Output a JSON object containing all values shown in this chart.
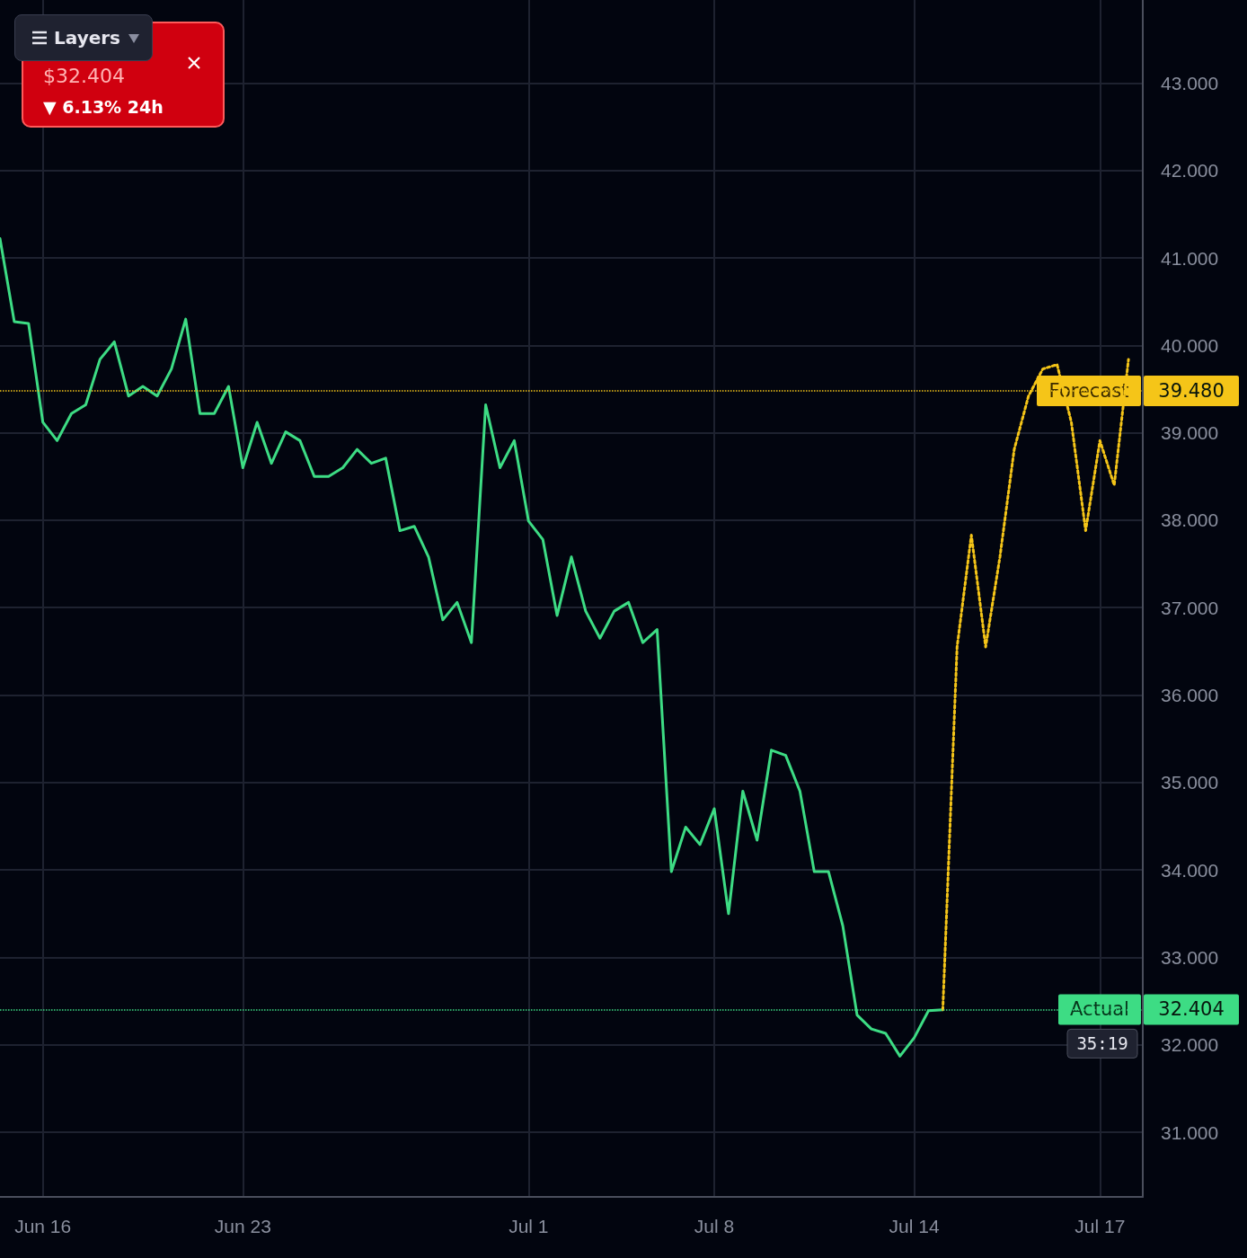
{
  "chart_data": {
    "type": "line",
    "categories": [
      null,
      null,
      null,
      "Jun 16",
      null,
      null,
      null,
      null,
      null,
      null,
      null,
      null,
      null,
      null,
      null,
      null,
      null,
      "Jun 23",
      null,
      null,
      null,
      null,
      null,
      null,
      null,
      null,
      null,
      null,
      null,
      null,
      null,
      null,
      null,
      null,
      null,
      null,
      null,
      "Jul 1",
      null,
      null,
      null,
      null,
      null,
      null,
      null,
      null,
      null,
      null,
      null,
      null,
      "Jul 8",
      null,
      null,
      null,
      null,
      null,
      null,
      null,
      null,
      null,
      null,
      null,
      null,
      null,
      "Jul 14",
      null,
      null,
      null,
      null,
      null,
      null,
      null,
      null,
      null,
      null,
      null,
      null,
      "Jul 17",
      null,
      null,
      null
    ],
    "series": [
      {
        "color": "#3ddc84",
        "line_style": "solid",
        "values": [
          41.22,
          40.27,
          40.25,
          39.12,
          38.91,
          39.22,
          39.32,
          39.84,
          40.04,
          39.42,
          39.53,
          39.42,
          39.73,
          40.3,
          39.22,
          39.22,
          39.53,
          38.6,
          39.12,
          38.65,
          39.01,
          38.91,
          38.5,
          38.5,
          38.6,
          38.81,
          38.65,
          38.71,
          37.88,
          37.93,
          37.58,
          36.86,
          37.06,
          36.6,
          39.32,
          38.6,
          38.91,
          37.99,
          37.78,
          36.91,
          37.58,
          36.96,
          36.65,
          36.96,
          37.06,
          36.6,
          36.75,
          33.98,
          34.49,
          34.29,
          34.7,
          33.5,
          34.9,
          34.34,
          35.37,
          35.31,
          34.9,
          33.98,
          33.98,
          33.36,
          32.34,
          32.18,
          32.13,
          31.87,
          32.08,
          32.39,
          32.4,
          null,
          null,
          null,
          null,
          null,
          null,
          null,
          null,
          null,
          null,
          null,
          null,
          null,
          null
        ]
      },
      {
        "color": "#f5c518",
        "line_style": "dotted",
        "values": [
          null,
          null,
          null,
          null,
          null,
          null,
          null,
          null,
          null,
          null,
          null,
          null,
          null,
          null,
          null,
          null,
          null,
          null,
          null,
          null,
          null,
          null,
          null,
          null,
          null,
          null,
          null,
          null,
          null,
          null,
          null,
          null,
          null,
          null,
          null,
          null,
          null,
          null,
          null,
          null,
          null,
          null,
          null,
          null,
          null,
          null,
          null,
          null,
          null,
          null,
          null,
          null,
          null,
          null,
          null,
          null,
          null,
          null,
          null,
          null,
          null,
          null,
          null,
          null,
          null,
          null,
          32.4,
          36.55,
          37.83,
          36.55,
          37.58,
          38.81,
          39.42,
          39.73,
          39.78,
          39.12,
          37.88,
          38.91,
          38.4,
          39.84,
          null
        ]
      }
    ],
    "ylim": [
      30.26,
      43.95
    ],
    "yticks": [
      {
        "value": 31,
        "label": "31.000"
      },
      {
        "value": 32,
        "label": "32.000"
      },
      {
        "value": 33,
        "label": "33.000"
      },
      {
        "value": 34,
        "label": "34.000"
      },
      {
        "value": 35,
        "label": "35.000"
      },
      {
        "value": 36,
        "label": "36.000"
      },
      {
        "value": 37,
        "label": "37.000"
      },
      {
        "value": 38,
        "label": "38.000"
      },
      {
        "value": 39,
        "label": "39.000"
      },
      {
        "value": 40,
        "label": "40.000"
      },
      {
        "value": 41,
        "label": "41.000"
      },
      {
        "value": 42,
        "label": "42.000"
      },
      {
        "value": 43,
        "label": "43.000"
      }
    ],
    "ref_lines": [
      {
        "axis": "y",
        "value": 39.48,
        "label": "Forecast",
        "color": "#f5c518",
        "line_style": "dotted"
      },
      {
        "axis": "y",
        "value": 32.404,
        "label": "Actual",
        "color": "#3ddc84",
        "line_style": "dotted"
      }
    ],
    "annotations": [
      "$32.404",
      "▼ 6.13% 24h",
      "Layers",
      "35:19",
      "39.480",
      "32.404"
    ],
    "grid": true,
    "marker": "none"
  }
}
